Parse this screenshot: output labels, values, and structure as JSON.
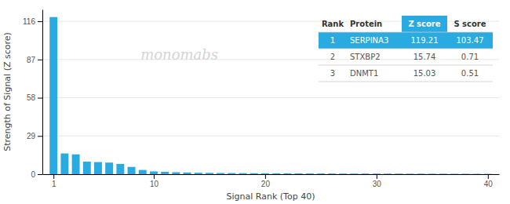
{
  "chart_data": {
    "type": "bar",
    "x_label": "Signal Rank (Top 40)",
    "y_label": "Strength of Signal (Z score)",
    "x": [
      1,
      2,
      3,
      4,
      5,
      6,
      7,
      8,
      9,
      10,
      11,
      12,
      13,
      14,
      15,
      16,
      17,
      18,
      19,
      20,
      21,
      22,
      23,
      24,
      25,
      26,
      27,
      28,
      29,
      30,
      31,
      32,
      33,
      34,
      35,
      36,
      37,
      38,
      39,
      40
    ],
    "values": [
      119.21,
      15.74,
      15.03,
      9.5,
      9.2,
      8.8,
      7.8,
      5.5,
      3.2,
      2.1,
      1.8,
      1.5,
      1.3,
      1.1,
      1.0,
      0.9,
      0.85,
      0.8,
      0.75,
      0.7,
      0.65,
      0.6,
      0.58,
      0.55,
      0.52,
      0.5,
      0.48,
      0.46,
      0.44,
      0.42,
      0.4,
      0.38,
      0.36,
      0.34,
      0.32,
      0.3,
      0.28,
      0.26,
      0.24,
      0.22
    ],
    "color": "#29abe2",
    "xlim": [
      0,
      41
    ],
    "xticks": [
      1,
      10,
      20,
      30,
      40
    ],
    "ylim": [
      0,
      125
    ],
    "yticks": [
      0,
      29,
      58,
      87,
      116
    ],
    "grid": true,
    "annotations": [
      "monomabs"
    ],
    "table": [
      [
        "Rank",
        "Protein",
        "Z score",
        "S score"
      ],
      [
        "1",
        "SERPINA3",
        "119.21",
        "103.47"
      ],
      [
        "2",
        "STXBP2",
        "15.74",
        "0.71"
      ],
      [
        "3",
        "DNMT1",
        "15.03",
        "0.51"
      ]
    ]
  }
}
